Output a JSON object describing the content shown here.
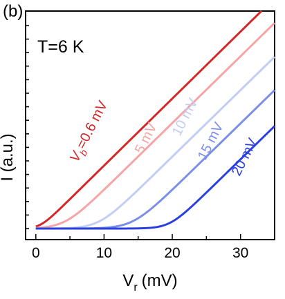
{
  "chart_data": {
    "type": "line",
    "panel_label": "(b)",
    "annotation": "T=6 K",
    "xlabel": "V",
    "xlabel_sub": "r",
    "xlabel_unit": "(mV)",
    "ylabel": "I (a.u.)",
    "xlim": [
      -1.5,
      35
    ],
    "x_ticks": [
      0,
      10,
      20,
      30
    ],
    "x_tick_labels": [
      "0",
      "10",
      "20",
      "30"
    ],
    "grid": false,
    "series": [
      {
        "name": "V_b=0.6 mV",
        "label_main": "V",
        "label_sub": "b",
        "label_rest": "=0.6 mV",
        "color": "#d62728",
        "onset": 0.6,
        "slope": 0.0308,
        "width": 0.8,
        "x": [
          0,
          2,
          5,
          10,
          15,
          20,
          23.8
        ],
        "y": [
          0.0,
          0.046,
          0.139,
          0.293,
          0.447,
          0.601,
          0.718
        ]
      },
      {
        "name": "5 mV",
        "label_main": "5 mV",
        "color": "#f5a5a5",
        "onset": 4.2,
        "slope": 0.0307,
        "width": 1.5,
        "x": [
          0,
          4,
          8,
          15,
          20,
          25.2
        ],
        "y": [
          0.0,
          0.005,
          0.118,
          0.331,
          0.485,
          0.643
        ]
      },
      {
        "name": "10 mV",
        "label_main": "10 mV",
        "color": "#c2cdf5",
        "onset": 9.2,
        "slope": 0.0306,
        "width": 1.5,
        "x": [
          0,
          9,
          12,
          20,
          25,
          30.6
        ],
        "y": [
          0.0,
          0.004,
          0.085,
          0.331,
          0.484,
          0.655
        ]
      },
      {
        "name": "15 mV",
        "label_main": "15 mV",
        "color": "#7b8fe6",
        "onset": 14.2,
        "slope": 0.0306,
        "width": 1.6,
        "x": [
          0,
          14,
          17,
          25,
          30,
          35
        ],
        "y": [
          0.0,
          0.004,
          0.086,
          0.331,
          0.484,
          0.637
        ]
      },
      {
        "name": "20 mV",
        "label_main": "20 mV",
        "color": "#2a3fe0",
        "onset": 19.6,
        "slope": 0.0306,
        "width": 1.2,
        "x": [
          0,
          19,
          22,
          28,
          33,
          35
        ],
        "y": [
          0.0,
          0.004,
          0.067,
          0.251,
          0.404,
          0.465
        ]
      }
    ]
  }
}
